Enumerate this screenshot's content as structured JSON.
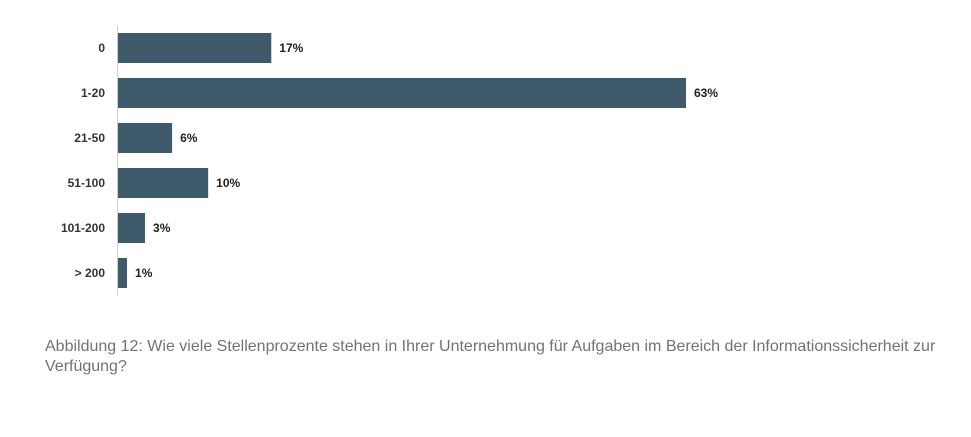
{
  "chart_data": {
    "type": "bar",
    "orientation": "horizontal",
    "categories": [
      "0",
      "1-20",
      "21-50",
      "51-100",
      "101-200",
      "> 200"
    ],
    "values": [
      17,
      63,
      6,
      10,
      3,
      1
    ],
    "value_labels": [
      "17%",
      "63%",
      "6%",
      "10%",
      "3%",
      "1%"
    ],
    "unit": "%",
    "xlim": [
      0,
      63
    ],
    "grid": false,
    "legend": "none",
    "bar_color": "#3f5b6b",
    "caption": "Abbildung 12: Wie viele Stellenprozente stehen in Ihrer Unternehmung für Aufgaben im Bereich der Informationssicherheit zur Verfügung?"
  }
}
